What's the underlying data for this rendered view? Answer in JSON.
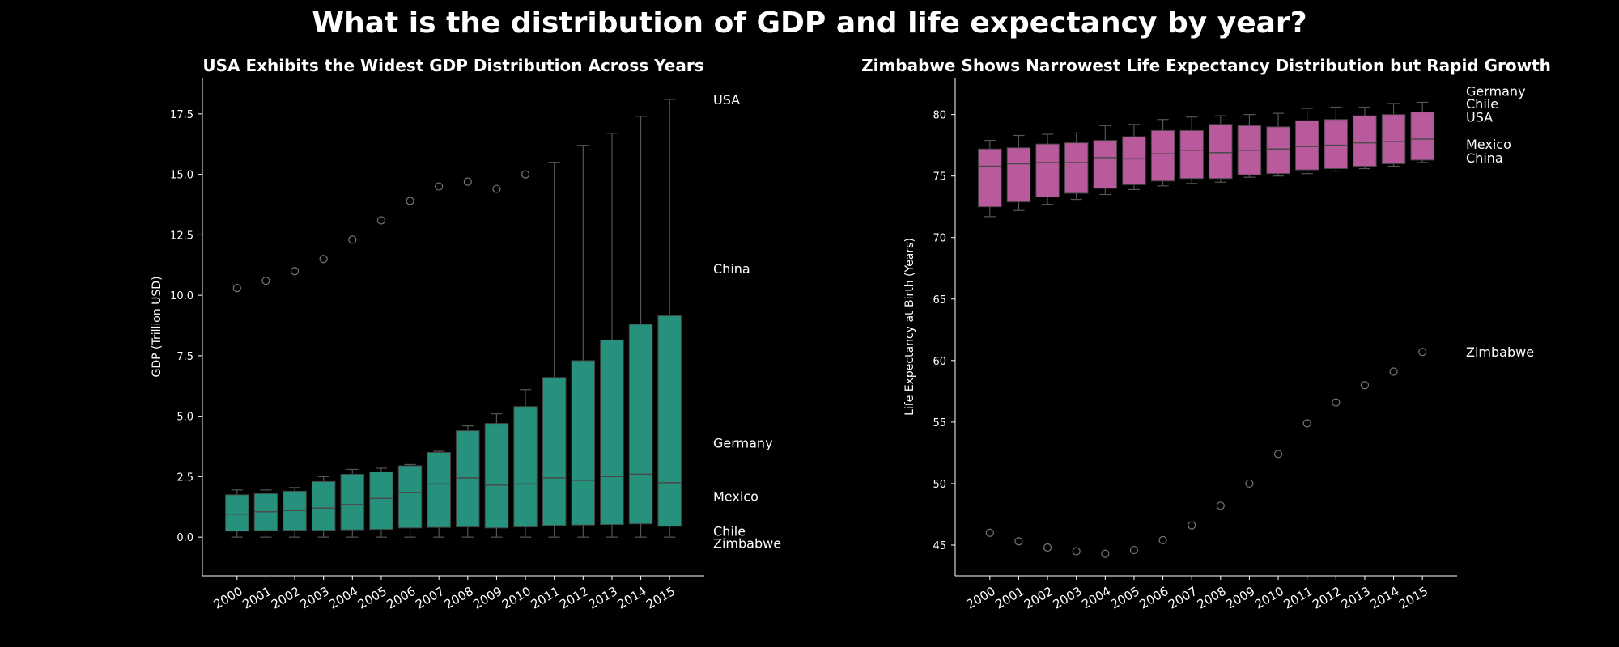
{
  "suptitle": "What is the distribution of GDP and life expectancy by year?",
  "colors": {
    "gdp_box": "#26917c",
    "life_box": "#b85a9c",
    "background": "#000000",
    "outlier": "#777777",
    "whisker": "#555555"
  },
  "chart_data": [
    {
      "type": "box",
      "title": "USA Exhibits the Widest GDP Distribution Across Years",
      "xlabel": "",
      "ylabel": "GDP (Trillion USD)",
      "ylim": [
        -1.6,
        19.0
      ],
      "yticks": [
        "0.0",
        "2.5",
        "5.0",
        "7.5",
        "10.0",
        "12.5",
        "15.0",
        "17.5"
      ],
      "categories": [
        "2000",
        "2001",
        "2002",
        "2003",
        "2004",
        "2005",
        "2006",
        "2007",
        "2008",
        "2009",
        "2010",
        "2011",
        "2012",
        "2013",
        "2014",
        "2015"
      ],
      "boxes": [
        {
          "low": 0.0,
          "q1": 0.25,
          "median": 0.95,
          "q3": 1.75,
          "high": 1.95
        },
        {
          "low": 0.0,
          "q1": 0.27,
          "median": 1.05,
          "q3": 1.8,
          "high": 1.95
        },
        {
          "low": 0.0,
          "q1": 0.28,
          "median": 1.1,
          "q3": 1.9,
          "high": 2.05
        },
        {
          "low": 0.0,
          "q1": 0.28,
          "median": 1.2,
          "q3": 2.3,
          "high": 2.5
        },
        {
          "low": 0.0,
          "q1": 0.3,
          "median": 1.35,
          "q3": 2.6,
          "high": 2.8
        },
        {
          "low": 0.0,
          "q1": 0.32,
          "median": 1.6,
          "q3": 2.7,
          "high": 2.85
        },
        {
          "low": 0.0,
          "q1": 0.38,
          "median": 1.85,
          "q3": 2.95,
          "high": 3.0
        },
        {
          "low": 0.0,
          "q1": 0.4,
          "median": 2.2,
          "q3": 3.5,
          "high": 3.55
        },
        {
          "low": 0.0,
          "q1": 0.42,
          "median": 2.45,
          "q3": 4.4,
          "high": 4.6
        },
        {
          "low": 0.0,
          "q1": 0.38,
          "median": 2.15,
          "q3": 4.7,
          "high": 5.1
        },
        {
          "low": 0.0,
          "q1": 0.42,
          "median": 2.2,
          "q3": 5.4,
          "high": 6.1
        },
        {
          "low": 0.0,
          "q1": 0.48,
          "median": 2.45,
          "q3": 6.6,
          "high": 15.5
        },
        {
          "low": 0.0,
          "q1": 0.5,
          "median": 2.35,
          "q3": 7.3,
          "high": 16.2
        },
        {
          "low": 0.0,
          "q1": 0.52,
          "median": 2.5,
          "q3": 8.15,
          "high": 16.7
        },
        {
          "low": 0.0,
          "q1": 0.55,
          "median": 2.6,
          "q3": 8.8,
          "high": 17.4
        },
        {
          "low": 0.0,
          "q1": 0.45,
          "median": 2.25,
          "q3": 9.15,
          "high": 18.1
        }
      ],
      "outliers": [
        {
          "category": "2000",
          "value": 10.3
        },
        {
          "category": "2001",
          "value": 10.6
        },
        {
          "category": "2002",
          "value": 11.0
        },
        {
          "category": "2003",
          "value": 11.5
        },
        {
          "category": "2004",
          "value": 12.3
        },
        {
          "category": "2005",
          "value": 13.1
        },
        {
          "category": "2006",
          "value": 13.9
        },
        {
          "category": "2007",
          "value": 14.5
        },
        {
          "category": "2008",
          "value": 14.7
        },
        {
          "category": "2009",
          "value": 14.4
        },
        {
          "category": "2010",
          "value": 15.0
        }
      ],
      "annotations": [
        {
          "text": "USA",
          "value": 18.1
        },
        {
          "text": "China",
          "value": 11.1
        },
        {
          "text": "Germany",
          "value": 3.9
        },
        {
          "text": "Mexico",
          "value": 1.7
        },
        {
          "text": "Chile",
          "value": 0.25
        },
        {
          "text": "Zimbabwe",
          "value": -0.25
        }
      ]
    },
    {
      "type": "box",
      "title": "Zimbabwe Shows Narrowest Life Expectancy Distribution but Rapid Growth",
      "xlabel": "",
      "ylabel": "Life Expectancy at Birth (Years)",
      "ylim": [
        42.5,
        83.0
      ],
      "yticks": [
        "45",
        "50",
        "55",
        "60",
        "65",
        "70",
        "75",
        "80"
      ],
      "categories": [
        "2000",
        "2001",
        "2002",
        "2003",
        "2004",
        "2005",
        "2006",
        "2007",
        "2008",
        "2009",
        "2010",
        "2011",
        "2012",
        "2013",
        "2014",
        "2015"
      ],
      "boxes": [
        {
          "low": 71.7,
          "q1": 72.5,
          "median": 75.8,
          "q3": 77.2,
          "high": 77.9
        },
        {
          "low": 72.2,
          "q1": 72.9,
          "median": 76.0,
          "q3": 77.3,
          "high": 78.3
        },
        {
          "low": 72.7,
          "q1": 73.3,
          "median": 76.1,
          "q3": 77.6,
          "high": 78.4
        },
        {
          "low": 73.1,
          "q1": 73.6,
          "median": 76.1,
          "q3": 77.7,
          "high": 78.5
        },
        {
          "low": 73.5,
          "q1": 74.0,
          "median": 76.5,
          "q3": 77.9,
          "high": 79.1
        },
        {
          "low": 73.9,
          "q1": 74.3,
          "median": 76.4,
          "q3": 78.2,
          "high": 79.2
        },
        {
          "low": 74.2,
          "q1": 74.6,
          "median": 76.8,
          "q3": 78.7,
          "high": 79.6
        },
        {
          "low": 74.4,
          "q1": 74.8,
          "median": 77.1,
          "q3": 78.7,
          "high": 79.8
        },
        {
          "low": 74.5,
          "q1": 74.8,
          "median": 76.9,
          "q3": 79.2,
          "high": 79.9
        },
        {
          "low": 74.9,
          "q1": 75.1,
          "median": 77.1,
          "q3": 79.1,
          "high": 80.0
        },
        {
          "low": 75.0,
          "q1": 75.2,
          "median": 77.2,
          "q3": 79.0,
          "high": 80.1
        },
        {
          "low": 75.2,
          "q1": 75.5,
          "median": 77.4,
          "q3": 79.5,
          "high": 80.5
        },
        {
          "low": 75.4,
          "q1": 75.6,
          "median": 77.5,
          "q3": 79.6,
          "high": 80.6
        },
        {
          "low": 75.6,
          "q1": 75.8,
          "median": 77.7,
          "q3": 79.9,
          "high": 80.6
        },
        {
          "low": 75.8,
          "q1": 76.0,
          "median": 77.8,
          "q3": 80.0,
          "high": 80.9
        },
        {
          "low": 76.1,
          "q1": 76.3,
          "median": 78.0,
          "q3": 80.2,
          "high": 81.0
        }
      ],
      "outliers": [
        {
          "category": "2000",
          "value": 46.0
        },
        {
          "category": "2001",
          "value": 45.3
        },
        {
          "category": "2002",
          "value": 44.8
        },
        {
          "category": "2003",
          "value": 44.5
        },
        {
          "category": "2004",
          "value": 44.3
        },
        {
          "category": "2005",
          "value": 44.6
        },
        {
          "category": "2006",
          "value": 45.4
        },
        {
          "category": "2007",
          "value": 46.6
        },
        {
          "category": "2008",
          "value": 48.2
        },
        {
          "category": "2009",
          "value": 50.0
        },
        {
          "category": "2010",
          "value": 52.4
        },
        {
          "category": "2011",
          "value": 54.9
        },
        {
          "category": "2012",
          "value": 56.6
        },
        {
          "category": "2013",
          "value": 58.0
        },
        {
          "category": "2014",
          "value": 59.1
        },
        {
          "category": "2015",
          "value": 60.7
        }
      ],
      "annotations": [
        {
          "text": "Germany",
          "value": 81.9
        },
        {
          "text": "Chile",
          "value": 80.9
        },
        {
          "text": "USA",
          "value": 79.8
        },
        {
          "text": "Mexico",
          "value": 77.6
        },
        {
          "text": "China",
          "value": 76.5
        },
        {
          "text": "Zimbabwe",
          "value": 60.7
        }
      ]
    }
  ]
}
